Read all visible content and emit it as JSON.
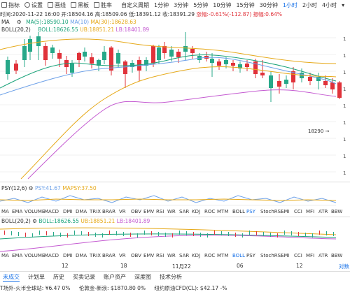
{
  "toolbar": {
    "items": [
      {
        "label": "指标",
        "icon": "indicator-icon"
      },
      {
        "label": "设置",
        "icon": "gear-icon"
      },
      {
        "label": "画线",
        "icon": "pencil-icon"
      },
      {
        "label": "黑板",
        "icon": "board-icon"
      },
      {
        "label": "胜率",
        "icon": "trophy-icon"
      }
    ],
    "periods": [
      "自定义周期",
      "1分钟",
      "3分钟",
      "5分钟",
      "10分钟",
      "15分钟",
      "30分钟",
      "1小时",
      "2小时",
      "4小时"
    ],
    "active_period": "1小时",
    "more_icon": "chevron-down-icon"
  },
  "info_bar": {
    "time": "时间:2020-11-22 16:00",
    "open": "开:18504.16",
    "high": "高:18509.06",
    "low": "低:18391.12",
    "close": "收:18391.29",
    "change": "涨幅:-0.61%(-112.87)",
    "amplitude": "振幅:0.64%"
  },
  "ma_legend": {
    "title": "MA",
    "ma5": "MA(5):18590.10",
    "ma10": "MA(10)",
    "ma30": "MA(30):18628.63"
  },
  "boll_legend": {
    "title": "BOLL(20,2)",
    "boll": "BOLL:18626.55",
    "ub": "UB:18851.21",
    "lb": "LB:18401.89"
  },
  "main_axis": {
    "right_marker": "18290",
    "right_ticks": [
      "1",
      "1",
      "1",
      "1",
      "1",
      "1",
      "1",
      "1",
      "1"
    ]
  },
  "psy_legend": {
    "title": "PSY(12,6)",
    "psy": "PSY:41.67",
    "mapsy": "MAPSY:37.50"
  },
  "indicator_tabs_1": [
    "MA",
    "EMA",
    "VOLUME",
    "MACD",
    "DMI",
    "DMA",
    "TRIX",
    "BRAR",
    "VR",
    "OBV",
    "EMV",
    "RSI",
    "WR",
    "SAR",
    "KDJ",
    "ROC",
    "MTM",
    "BOLL",
    "PSY",
    "StochRSI",
    "SMI",
    "CCI",
    "MFI",
    "ATR",
    "BBW"
  ],
  "indicator_tabs_1_active": "PSY",
  "small_boll_legend": {
    "title": "BOLL(20,2)",
    "boll": "BOLL:18626.55",
    "ub": "UB:18851.21",
    "lb": "LB:18401.89"
  },
  "indicator_tabs_2": [
    "MA",
    "EMA",
    "VOLUME",
    "MACD",
    "DMI",
    "DMA",
    "TRIX",
    "BRAR",
    "VR",
    "OBV",
    "EMV",
    "RSI",
    "WR",
    "SAR",
    "KDJ",
    "ROC",
    "MTM",
    "BOLL",
    "PSY",
    "StochRSI",
    "SMI",
    "CCI",
    "MFI",
    "ATR",
    "BBW"
  ],
  "indicator_tabs_2_active": "BOLL",
  "date_axis": {
    "labels": [
      "12",
      "18",
      "11月22",
      "06",
      "12"
    ],
    "right_label": "对数"
  },
  "bottom_tabs": [
    "未成交",
    "计划单",
    "历史",
    "买卖记录",
    "账户资产",
    "深度图",
    "技术分析"
  ],
  "bottom_tabs_active": "未成交",
  "bottom_info": {
    "text1": "T场外-火币全球站: ¥6.47 0%",
    "text2": "伦敦金-新浪: $1870.80 0%",
    "text3": "纽约原油CFD(CL): $42.17 -%"
  },
  "colors": {
    "up": "#e0323a",
    "down": "#27a889",
    "ma5": "#1aa37a",
    "ma10": "#6ca0e8",
    "ma30": "#e6a919",
    "boll_ub": "#e6a919",
    "boll_lb": "#c45ad1",
    "accent": "#1a73e8"
  }
}
